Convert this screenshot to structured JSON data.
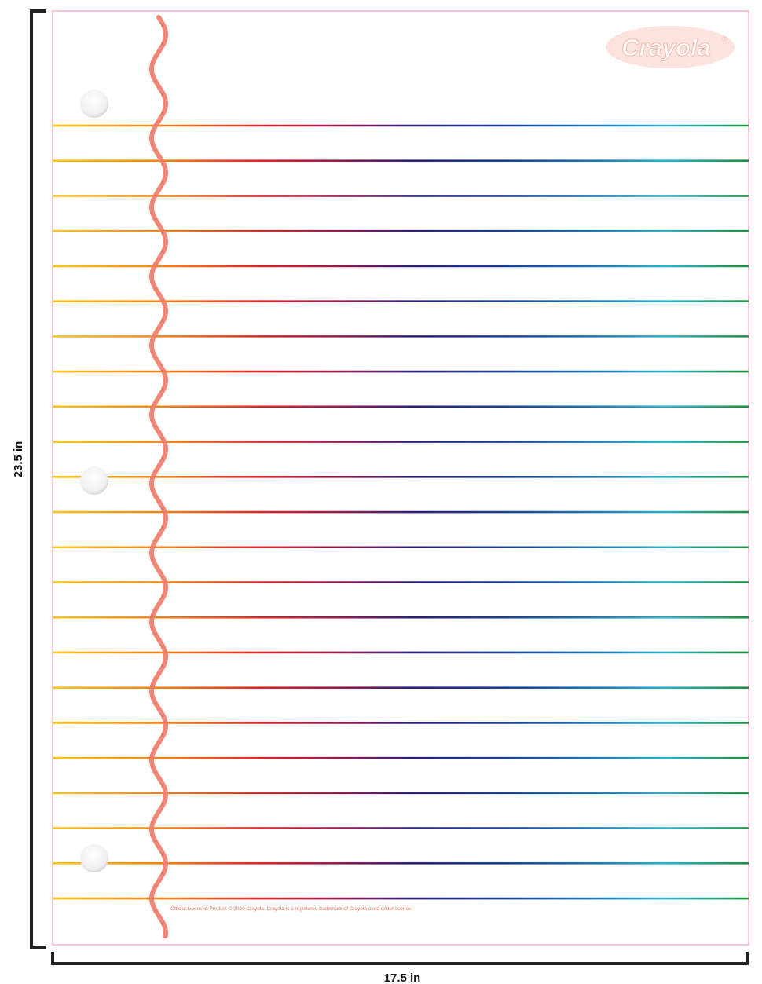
{
  "dimensions": {
    "height": "23.5 in",
    "width": "17.5 in"
  },
  "logo": {
    "text": "Crayola",
    "mark": "®"
  },
  "footer": "Official Licensed Product © 2020 Crayola. Crayola is a registered trademark of Crayola used under license."
}
